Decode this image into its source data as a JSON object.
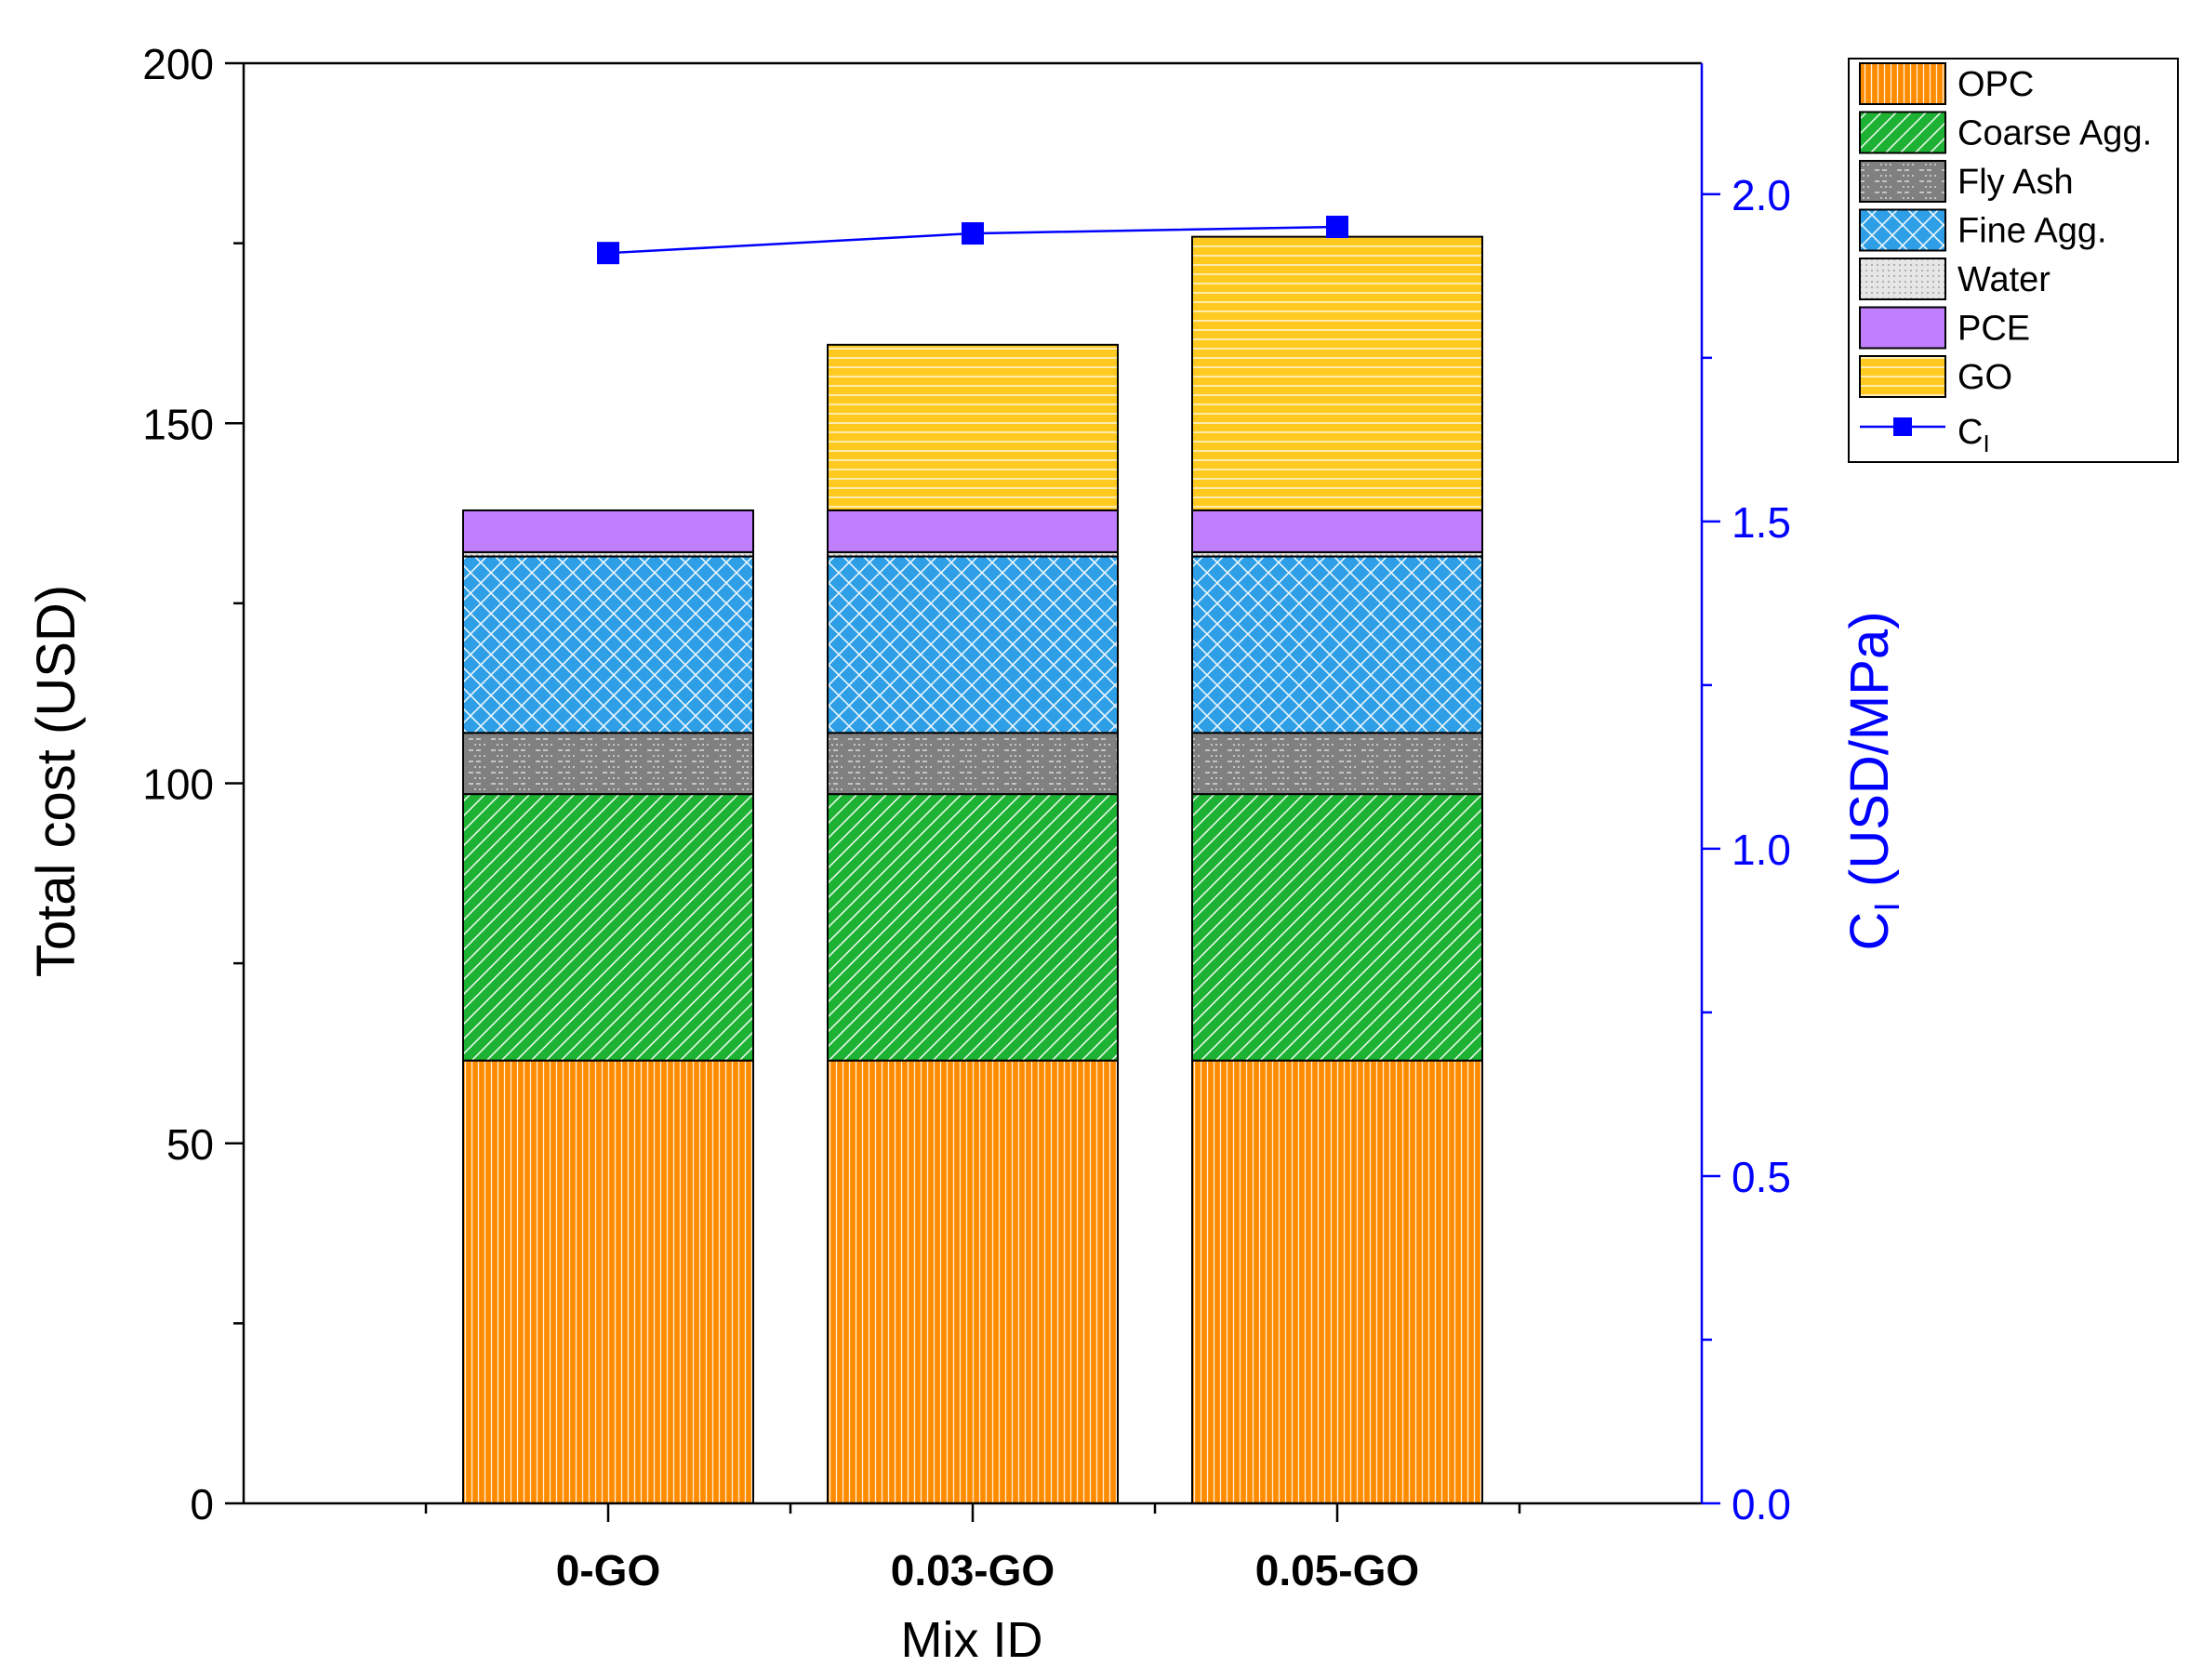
{
  "chart_data": {
    "type": "bar",
    "stacked": true,
    "title": "",
    "xlabel": "Mix ID",
    "ylabel": "Total cost (USD)",
    "ylim": [
      0,
      200
    ],
    "y_ticks": [
      "0",
      "50",
      "100",
      "150",
      "200"
    ],
    "y2label_main": "C",
    "y2label_sub": "I",
    "y2label_rest": " (USD/MPa)",
    "y2lim": [
      0,
      2.2
    ],
    "y2_ticks": [
      "0.0",
      "0.5",
      "1.0",
      "1.5",
      "2.0"
    ],
    "categories": [
      "0-GO",
      "0.03-GO",
      "0.05-GO"
    ],
    "series": [
      {
        "name": "OPC",
        "color": "#ff8c00",
        "pattern": "vertical",
        "values": [
          61.5,
          61.5,
          61.5
        ]
      },
      {
        "name": "Coarse Agg.",
        "color": "#1db233",
        "pattern": "diagonal",
        "values": [
          37,
          37,
          37
        ]
      },
      {
        "name": "Fly Ash",
        "color": "#808080",
        "pattern": "dash",
        "values": [
          8.5,
          8.5,
          8.5
        ]
      },
      {
        "name": "Fine Agg.",
        "color": "#2e9fe6",
        "pattern": "crosshatch",
        "values": [
          24.5,
          24.5,
          24.5
        ]
      },
      {
        "name": "Water",
        "color": "#e6e6e6",
        "pattern": "dots",
        "values": [
          0.6,
          0.6,
          0.6
        ]
      },
      {
        "name": "PCE",
        "color": "#bf7fff",
        "pattern": "none",
        "values": [
          5.8,
          5.8,
          5.8
        ]
      },
      {
        "name": "GO",
        "color": "#ffc91f",
        "pattern": "horizontal",
        "values": [
          0,
          23,
          38
        ]
      }
    ],
    "line_series": {
      "name_main": "C",
      "name_sub": "I",
      "color": "#0000ff",
      "axis": "right",
      "values": [
        1.91,
        1.94,
        1.95
      ]
    },
    "legend_position": "top-right outside"
  }
}
